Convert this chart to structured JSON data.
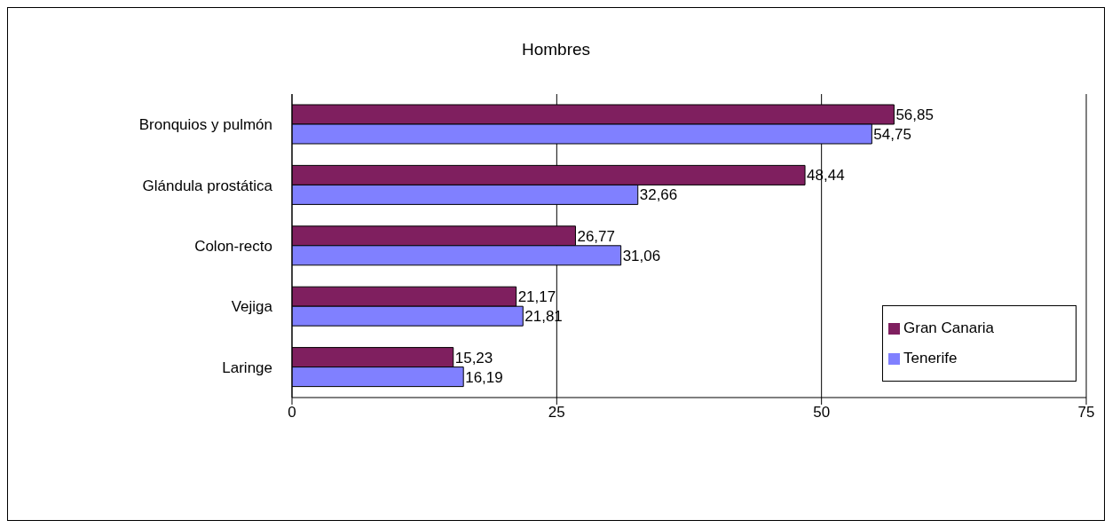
{
  "chart_data": {
    "type": "bar",
    "orientation": "horizontal",
    "title": "Hombres",
    "categories": [
      "Bronquios y pulmón",
      "Glándula prostática",
      "Colon-recto",
      "Vejiga",
      "Laringe"
    ],
    "series": [
      {
        "name": "Gran Canaria",
        "color": "#7f1f5f",
        "values": [
          56.85,
          48.44,
          26.77,
          21.17,
          15.23
        ],
        "value_labels": [
          "56,85",
          "48,44",
          "26,77",
          "21,17",
          "15,23"
        ]
      },
      {
        "name": "Tenerife",
        "color": "#8080ff",
        "values": [
          54.75,
          32.66,
          31.06,
          21.81,
          16.19
        ],
        "value_labels": [
          "54,75",
          "32,66",
          "31,06",
          "21,81",
          "16,19"
        ]
      }
    ],
    "xlim": [
      0,
      75
    ],
    "xticks": [
      0,
      25,
      50,
      75
    ],
    "grid": "x",
    "legend": "right"
  }
}
